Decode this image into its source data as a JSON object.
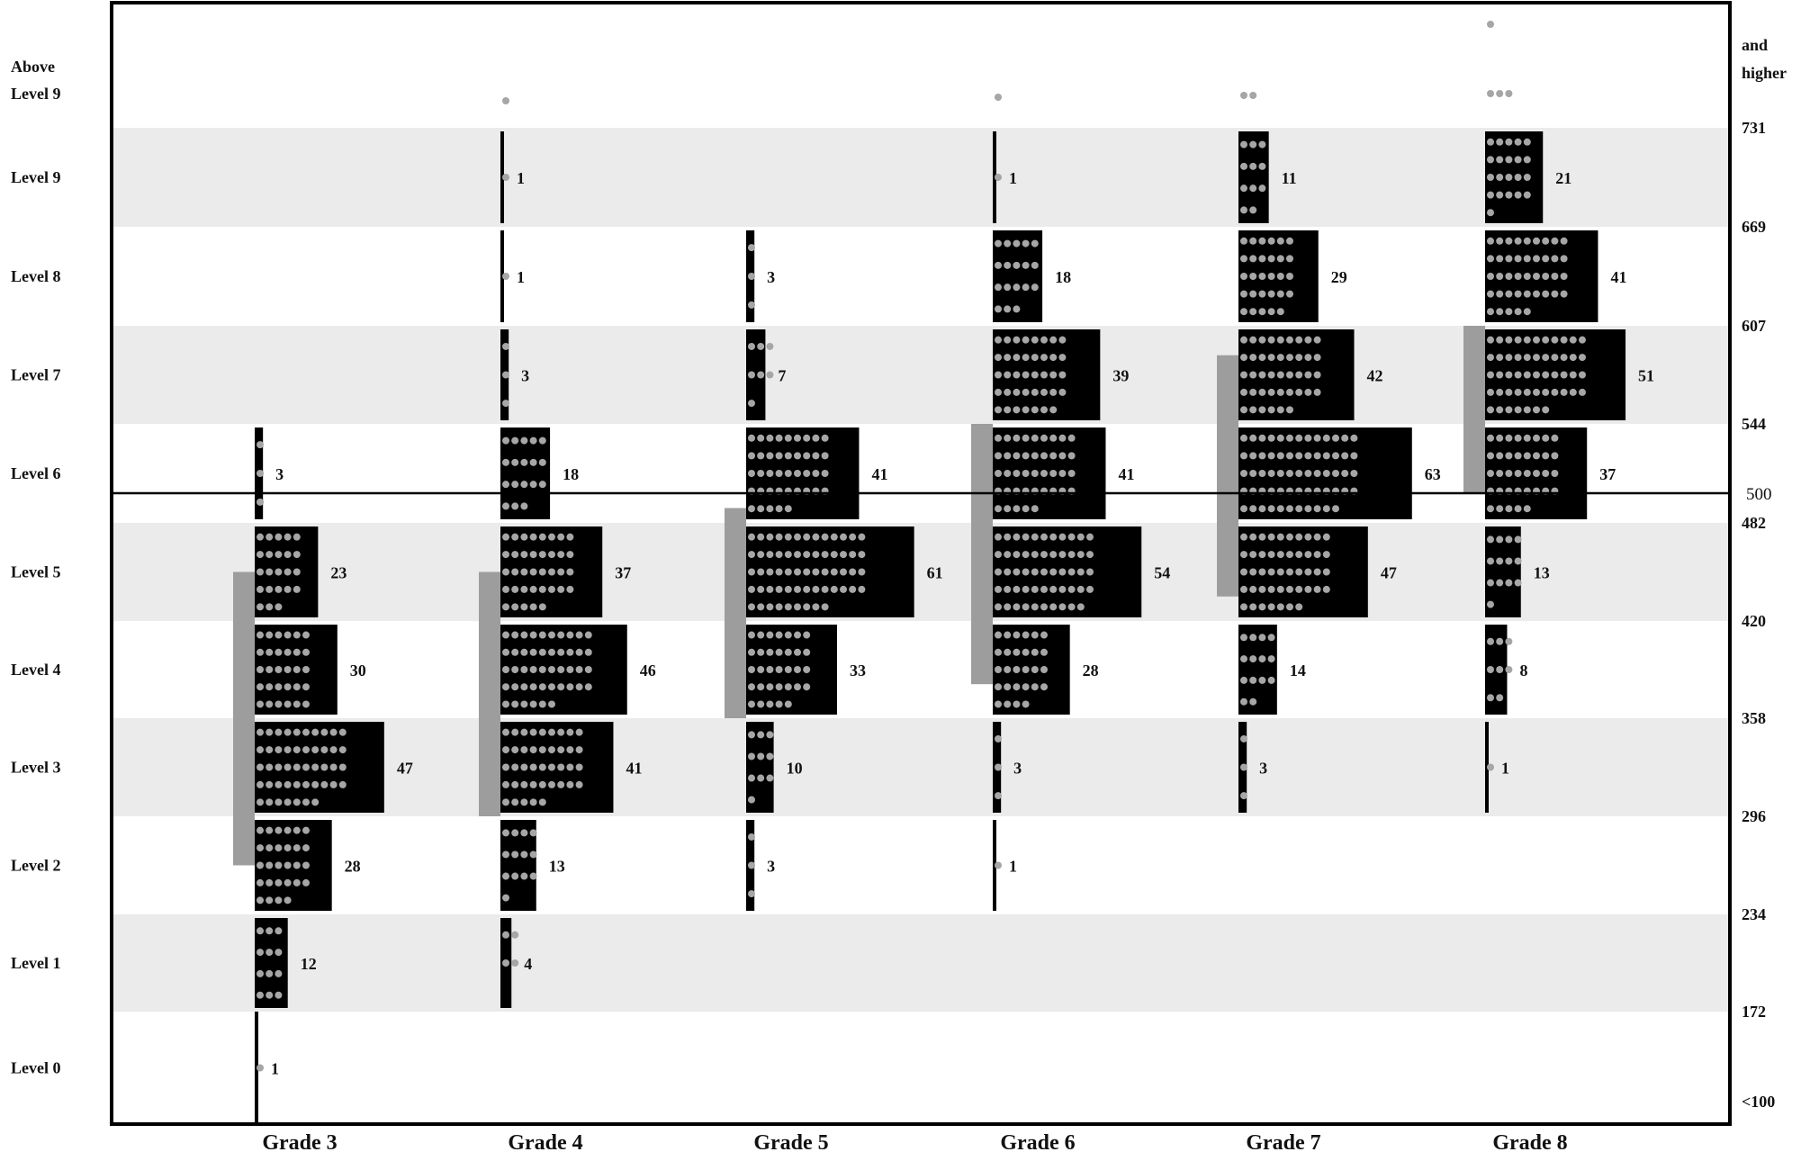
{
  "chart_data": {
    "type": "bar",
    "orientation": "horizontal-histograms",
    "level_labels": [
      "Level 0",
      "Level 1",
      "Level 2",
      "Level 3",
      "Level 4",
      "Level 5",
      "Level 6",
      "Level 7",
      "Level 8",
      "Level 9",
      "Above Level 9"
    ],
    "scale_labels": [
      "<100",
      "172",
      "234",
      "296",
      "358",
      "420",
      "482",
      "544",
      "607",
      "669",
      "731",
      "and higher"
    ],
    "reference_line": {
      "value": 500,
      "label": "500"
    },
    "grades": [
      {
        "label": "Grade 3",
        "counts": [
          1,
          12,
          28,
          47,
          30,
          23,
          3,
          0,
          0,
          0
        ],
        "dots_above": 0,
        "range_bar": [
          5.5,
          2.5
        ]
      },
      {
        "label": "Grade 4",
        "counts": [
          0,
          4,
          13,
          41,
          46,
          37,
          18,
          3,
          1,
          1
        ],
        "dots_above": 1,
        "range_bar": [
          5.5,
          3.0
        ]
      },
      {
        "label": "Grade 5",
        "counts": [
          0,
          0,
          3,
          10,
          33,
          61,
          41,
          7,
          3,
          0
        ],
        "dots_above": 0,
        "range_bar": [
          6.15,
          4.0
        ]
      },
      {
        "label": "Grade 6",
        "counts": [
          0,
          0,
          1,
          3,
          28,
          54,
          41,
          39,
          18,
          1
        ],
        "dots_above": 1,
        "range_bar": [
          7.0,
          4.35
        ]
      },
      {
        "label": "Grade 7",
        "counts": [
          0,
          0,
          0,
          3,
          14,
          47,
          63,
          42,
          29,
          11
        ],
        "dots_above": 2,
        "range_bar": [
          7.7,
          5.25
        ]
      },
      {
        "label": "Grade 8",
        "counts": [
          0,
          0,
          0,
          1,
          8,
          13,
          37,
          51,
          41,
          21
        ],
        "dots_above": 4,
        "range_bar": [
          8.0,
          6.3
        ]
      }
    ],
    "colors": {
      "bar": "#000000",
      "dot": "#a6a6a6",
      "range_bar": "#9d9d9d",
      "band": "#ebebeb",
      "frame": "#000000"
    },
    "grid": false
  }
}
